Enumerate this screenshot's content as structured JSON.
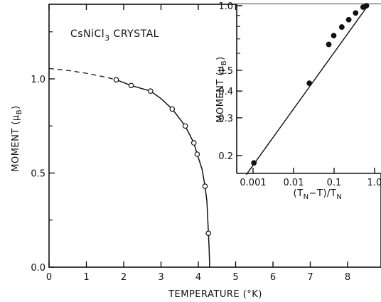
{
  "chart_data": [
    {
      "type": "line",
      "annotation": "CsNiCl3 CRYSTAL",
      "xlabel": "TEMPERATURE (°K)",
      "ylabel": "MOMENT (μB)",
      "xlim": [
        0,
        9
      ],
      "ylim": [
        0,
        1.35
      ],
      "x_ticks": [
        0,
        1,
        2,
        3,
        4,
        5,
        6,
        7,
        8
      ],
      "x_tick_labels": [
        "0",
        "1",
        "2",
        "3",
        "4",
        "5",
        "6",
        "7",
        "8"
      ],
      "y_ticks": [
        0,
        0.5,
        1.0
      ],
      "y_tick_labels": [
        "0.0",
        "0.5",
        "1.0"
      ],
      "series": [
        {
          "marker": "open-circle",
          "x": [
            1.8,
            2.2,
            2.72,
            3.3,
            3.65,
            3.88,
            3.97,
            4.18,
            4.27
          ],
          "y": [
            0.995,
            0.965,
            0.935,
            0.84,
            0.75,
            0.66,
            0.6,
            0.43,
            0.18
          ]
        }
      ],
      "fit_curve": {
        "dashed_x": [
          0,
          0.5,
          1.0,
          1.5,
          1.8
        ],
        "dashed_y": [
          1.055,
          1.045,
          1.03,
          1.01,
          0.995
        ],
        "solid_x": [
          1.8,
          2.2,
          2.72,
          3.0,
          3.3,
          3.65,
          3.88,
          3.97,
          4.1,
          4.18,
          4.23,
          4.27,
          4.29,
          4.3,
          4.3
        ],
        "solid_y": [
          0.995,
          0.965,
          0.935,
          0.895,
          0.84,
          0.75,
          0.66,
          0.6,
          0.52,
          0.43,
          0.35,
          0.18,
          0.1,
          0.03,
          0.0
        ]
      }
    },
    {
      "type": "scatter",
      "scale": "log-log",
      "xlabel": "(TN−T)/TN",
      "ylabel": "MOMENT (μB)",
      "xlim": [
        0.0005,
        1.5
      ],
      "ylim": [
        0.17,
        1.0
      ],
      "x_ticks": [
        0.001,
        0.01,
        0.1,
        1.0
      ],
      "x_tick_labels": [
        "0.001",
        "0.01",
        "0.1",
        "1.0"
      ],
      "y_ticks": [
        0.2,
        0.3,
        0.4,
        0.5,
        1.0
      ],
      "y_tick_labels": [
        "0.2",
        "0.3",
        "0.4",
        "0.5",
        "1.0"
      ],
      "series": [
        {
          "marker": "filled-circle",
          "x": [
            0.00105,
            0.0245,
            0.074,
            0.098,
            0.155,
            0.23,
            0.34,
            0.52,
            0.63
          ],
          "y": [
            0.185,
            0.435,
            0.66,
            0.725,
            0.795,
            0.86,
            0.925,
            0.985,
            1.0
          ]
        }
      ],
      "fit_line": {
        "x": [
          0.00068,
          0.68
        ],
        "y": [
          0.163,
          1.0
        ]
      }
    }
  ]
}
